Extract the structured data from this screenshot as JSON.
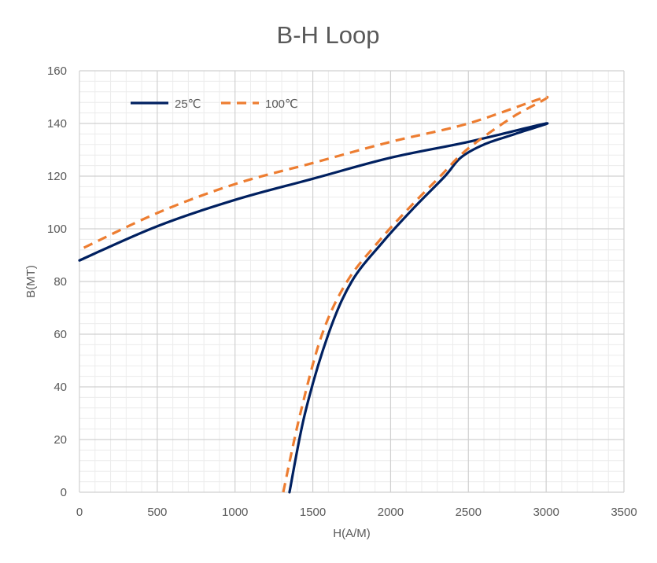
{
  "chart_data": {
    "type": "line",
    "title": "B-H Loop",
    "xlabel": "H(A/M)",
    "ylabel": "B(MT)",
    "xlim": [
      0,
      3500
    ],
    "ylim": [
      0,
      160
    ],
    "x_ticks": [
      0,
      500,
      1000,
      1500,
      2000,
      2500,
      3000,
      3500
    ],
    "y_ticks": [
      0,
      20,
      40,
      60,
      80,
      100,
      120,
      140,
      160
    ],
    "grid": true,
    "legend_position": "top-left",
    "series": [
      {
        "name": "25℃",
        "color": "#002060",
        "style": "solid",
        "points": [
          [
            1350,
            0
          ],
          [
            1450,
            30
          ],
          [
            1600,
            60
          ],
          [
            1750,
            80
          ],
          [
            1950,
            95
          ],
          [
            2150,
            108
          ],
          [
            2350,
            120
          ],
          [
            2450,
            127
          ],
          [
            2600,
            132
          ],
          [
            2800,
            136
          ],
          [
            3000,
            140
          ],
          [
            2500,
            133
          ],
          [
            2000,
            127
          ],
          [
            1500,
            119
          ],
          [
            1000,
            111
          ],
          [
            500,
            101
          ],
          [
            0,
            88
          ]
        ]
      },
      {
        "name": "100℃",
        "color": "#ED7D31",
        "style": "dashed",
        "points": [
          [
            1310,
            0
          ],
          [
            1420,
            30
          ],
          [
            1560,
            60
          ],
          [
            1720,
            80
          ],
          [
            1920,
            95
          ],
          [
            2120,
            108
          ],
          [
            2320,
            120
          ],
          [
            2450,
            128
          ],
          [
            2600,
            135
          ],
          [
            2800,
            143
          ],
          [
            3000,
            150
          ],
          [
            2500,
            140
          ],
          [
            2000,
            133
          ],
          [
            1500,
            125
          ],
          [
            1000,
            117
          ],
          [
            500,
            106
          ],
          [
            0,
            92
          ]
        ]
      }
    ]
  }
}
